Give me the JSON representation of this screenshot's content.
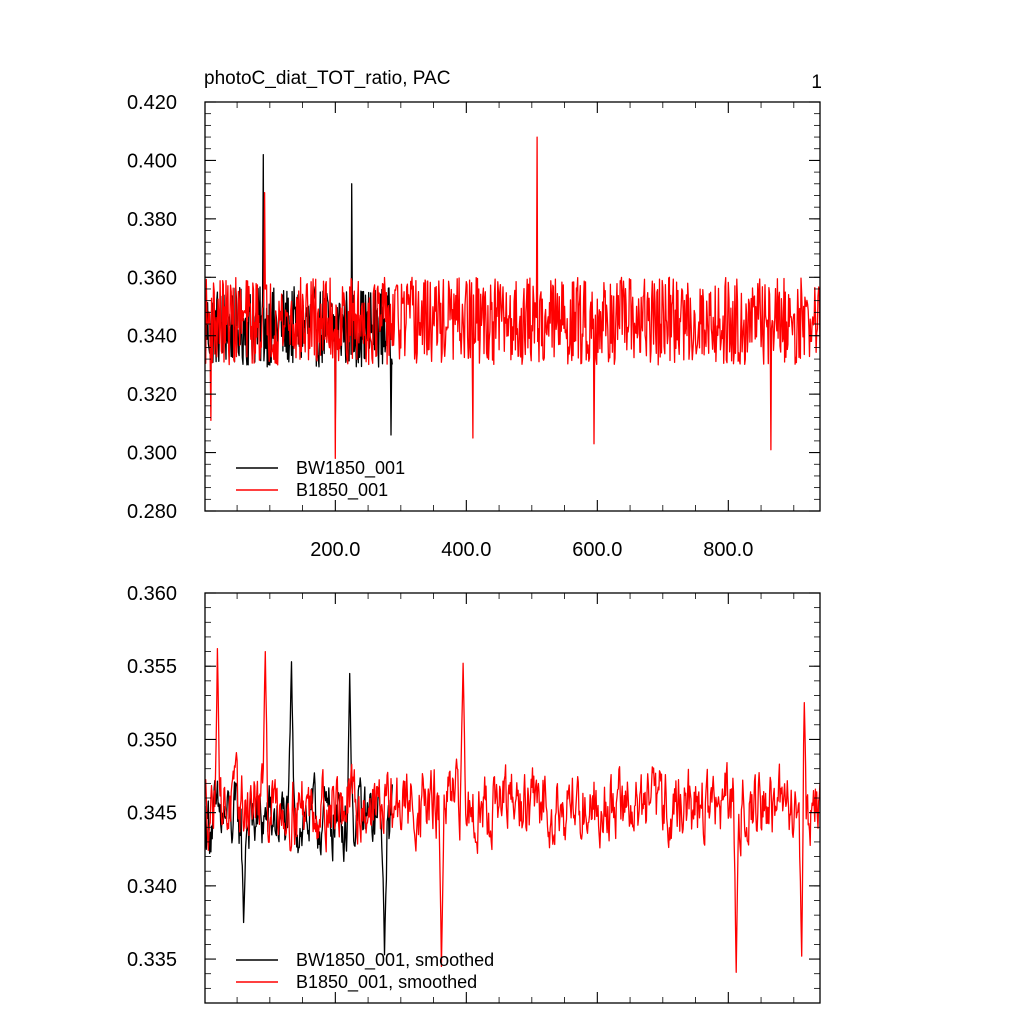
{
  "figure": {
    "title_left": "photoC_diat_TOT_ratio, PAC",
    "title_right": "1"
  },
  "colors": {
    "BW1850_001": "#000000",
    "B1850_001": "#ff0000"
  },
  "chart_data": [
    {
      "type": "line",
      "title": "photoC_diat_TOT_ratio, PAC",
      "xlabel": "",
      "ylabel": "",
      "xlim": [
        1,
        940
      ],
      "ylim": [
        0.28,
        0.42
      ],
      "x_ticks": [
        "200.0",
        "400.0",
        "600.0",
        "800.0"
      ],
      "x_tick_values": [
        200,
        400,
        600,
        800
      ],
      "y_ticks": [
        "0.280",
        "0.300",
        "0.320",
        "0.340",
        "0.360",
        "0.380",
        "0.400",
        "0.420"
      ],
      "y_tick_values": [
        0.28,
        0.3,
        0.32,
        0.34,
        0.36,
        0.38,
        0.4,
        0.42
      ],
      "legend_position": "bottom-left",
      "series": [
        {
          "name": "BW1850_001",
          "color": "#000000",
          "x_range": [
            1,
            287
          ],
          "mean": 0.343,
          "spread": 0.011,
          "y_min": 0.306,
          "y_max": 0.402,
          "points": [
            [
              90,
              0.402
            ],
            [
              225,
              0.392
            ],
            [
              285,
              0.306
            ],
            [
              200,
              0.309
            ]
          ]
        },
        {
          "name": "B1850_001",
          "color": "#ff0000",
          "x_range": [
            1,
            940
          ],
          "mean": 0.345,
          "spread": 0.012,
          "y_min": 0.298,
          "y_max": 0.408,
          "points": [
            [
              508,
              0.408
            ],
            [
              200,
              0.298
            ],
            [
              92,
              0.389
            ],
            [
              865,
              0.301
            ],
            [
              410,
              0.305
            ],
            [
              595,
              0.303
            ],
            [
              10,
              0.311
            ]
          ]
        }
      ],
      "grid": false
    },
    {
      "type": "line",
      "title": "",
      "xlabel": "",
      "ylabel": "",
      "xlim": [
        1,
        940
      ],
      "ylim": [
        0.332,
        0.36
      ],
      "x_ticks": [],
      "x_tick_values": [
        200,
        400,
        600,
        800
      ],
      "y_ticks": [
        "0.335",
        "0.340",
        "0.345",
        "0.350",
        "0.355",
        "0.360"
      ],
      "y_tick_values": [
        0.335,
        0.34,
        0.345,
        0.35,
        0.355,
        0.36
      ],
      "legend_position": "bottom-left",
      "series": [
        {
          "name": "BW1850_001, smoothed",
          "color": "#000000",
          "x_range": [
            1,
            287
          ],
          "mean": 0.3445,
          "spread": 0.0035,
          "y_min": 0.3353,
          "y_max": 0.3553,
          "points": [
            [
              133,
              0.3553
            ],
            [
              222,
              0.3545
            ],
            [
              275,
              0.3353
            ],
            [
              60,
              0.3375
            ]
          ]
        },
        {
          "name": "B1850_001, smoothed",
          "color": "#ff0000",
          "x_range": [
            1,
            940
          ],
          "mean": 0.3455,
          "spread": 0.0035,
          "y_min": 0.3341,
          "y_max": 0.3562,
          "points": [
            [
              20,
              0.3562
            ],
            [
              93,
              0.356
            ],
            [
              395,
              0.3552
            ],
            [
              812,
              0.3341
            ],
            [
              915,
              0.3545
            ],
            [
              362,
              0.3345
            ],
            [
              912,
              0.3352
            ]
          ]
        }
      ],
      "grid": false
    }
  ]
}
